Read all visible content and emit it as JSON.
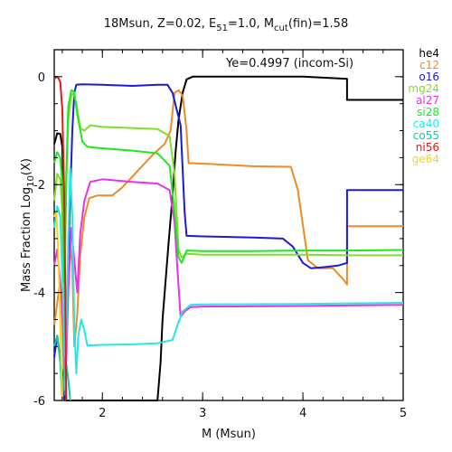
{
  "chart_data": {
    "type": "line",
    "title": {
      "prefix": "18Msun, Z=0.02, E",
      "sub1": "51",
      "middle": "=1.0, M",
      "sub2": "cut",
      "suffix": "(fin)=1.58"
    },
    "annotation": "Ye=0.4997 (incom-Si)",
    "xlabel": "M (Msun)",
    "ylabel": {
      "prefix": "Mass Fraction Log",
      "sub": "10",
      "suffix": "(X)"
    },
    "xlim": [
      1.52,
      5.0
    ],
    "ylim": [
      -6.0,
      0.5
    ],
    "xticks": [
      2,
      3,
      4,
      5
    ],
    "yticks": [
      0,
      -2,
      -4,
      -6
    ],
    "legend_position": "right-outside",
    "series": [
      {
        "name": "he4",
        "color": "#000000",
        "points": [
          [
            1.52,
            -1.25
          ],
          [
            1.55,
            -1.05
          ],
          [
            1.58,
            -1.06
          ],
          [
            1.6,
            -1.3
          ],
          [
            1.62,
            -2.8
          ],
          [
            1.63,
            -5.5
          ],
          [
            1.64,
            -6.0
          ],
          [
            2.55,
            -6.0
          ],
          [
            2.58,
            -5.3
          ],
          [
            2.6,
            -4.5
          ],
          [
            2.63,
            -3.8
          ],
          [
            2.66,
            -3.1
          ],
          [
            2.7,
            -2.2
          ],
          [
            2.73,
            -1.4
          ],
          [
            2.76,
            -0.8
          ],
          [
            2.8,
            -0.3
          ],
          [
            2.84,
            -0.05
          ],
          [
            2.9,
            0.0
          ],
          [
            3.5,
            0.0
          ],
          [
            4.0,
            0.0
          ],
          [
            4.44,
            -0.04
          ],
          [
            4.44,
            -0.43
          ],
          [
            5.0,
            -0.43
          ]
        ]
      },
      {
        "name": "c12",
        "color": "#f08a24",
        "points": [
          [
            1.52,
            -4.6
          ],
          [
            1.55,
            -4.2
          ],
          [
            1.57,
            -3.9
          ],
          [
            1.6,
            -4.5
          ],
          [
            1.62,
            -5.8
          ],
          [
            1.64,
            -4.2
          ],
          [
            1.67,
            -2.9
          ],
          [
            1.7,
            -3.5
          ],
          [
            1.72,
            -5.0
          ],
          [
            1.75,
            -4.4
          ],
          [
            1.78,
            -3.3
          ],
          [
            1.82,
            -2.6
          ],
          [
            1.87,
            -2.25
          ],
          [
            1.95,
            -2.2
          ],
          [
            2.1,
            -2.2
          ],
          [
            2.2,
            -2.05
          ],
          [
            2.35,
            -1.75
          ],
          [
            2.5,
            -1.45
          ],
          [
            2.62,
            -1.25
          ],
          [
            2.68,
            -1.0
          ],
          [
            2.72,
            -0.3
          ],
          [
            2.76,
            -0.25
          ],
          [
            2.8,
            -0.35
          ],
          [
            2.84,
            -1.0
          ],
          [
            2.86,
            -1.6
          ],
          [
            3.1,
            -1.62
          ],
          [
            3.5,
            -1.66
          ],
          [
            3.88,
            -1.67
          ],
          [
            3.95,
            -2.1
          ],
          [
            4.05,
            -3.4
          ],
          [
            4.15,
            -3.55
          ],
          [
            4.3,
            -3.55
          ],
          [
            4.4,
            -3.75
          ],
          [
            4.44,
            -3.85
          ],
          [
            4.44,
            -2.77
          ],
          [
            5.0,
            -2.77
          ]
        ]
      },
      {
        "name": "o16",
        "color": "#1a1adc",
        "points": [
          [
            1.52,
            -5.2
          ],
          [
            1.55,
            -4.8
          ],
          [
            1.6,
            -5.5
          ],
          [
            1.62,
            -6.0
          ],
          [
            1.65,
            -4.0
          ],
          [
            1.68,
            -2.2
          ],
          [
            1.7,
            -1.0
          ],
          [
            1.72,
            -0.3
          ],
          [
            1.74,
            -0.15
          ],
          [
            1.8,
            -0.14
          ],
          [
            2.0,
            -0.15
          ],
          [
            2.3,
            -0.17
          ],
          [
            2.55,
            -0.15
          ],
          [
            2.65,
            -0.15
          ],
          [
            2.7,
            -0.3
          ],
          [
            2.78,
            -0.9
          ],
          [
            2.82,
            -2.5
          ],
          [
            2.84,
            -2.95
          ],
          [
            3.0,
            -2.96
          ],
          [
            3.5,
            -2.98
          ],
          [
            3.8,
            -3.0
          ],
          [
            3.9,
            -3.15
          ],
          [
            4.0,
            -3.45
          ],
          [
            4.08,
            -3.55
          ],
          [
            4.2,
            -3.53
          ],
          [
            4.35,
            -3.5
          ],
          [
            4.44,
            -3.45
          ],
          [
            4.44,
            -2.1
          ],
          [
            5.0,
            -2.1
          ]
        ]
      },
      {
        "name": "mg24",
        "color": "#7fe02a",
        "points": [
          [
            1.52,
            -2.3
          ],
          [
            1.55,
            -1.8
          ],
          [
            1.58,
            -1.9
          ],
          [
            1.6,
            -2.5
          ],
          [
            1.62,
            -4.5
          ],
          [
            1.64,
            -2.0
          ],
          [
            1.66,
            -0.8
          ],
          [
            1.69,
            -0.35
          ],
          [
            1.71,
            -0.3
          ],
          [
            1.74,
            -0.5
          ],
          [
            1.78,
            -0.95
          ],
          [
            1.82,
            -1.0
          ],
          [
            1.88,
            -0.9
          ],
          [
            2.0,
            -0.93
          ],
          [
            2.3,
            -0.95
          ],
          [
            2.55,
            -0.97
          ],
          [
            2.67,
            -1.1
          ],
          [
            2.72,
            -1.8
          ],
          [
            2.76,
            -3.2
          ],
          [
            2.79,
            -3.35
          ],
          [
            2.84,
            -3.28
          ],
          [
            3.0,
            -3.3
          ],
          [
            3.5,
            -3.3
          ],
          [
            4.0,
            -3.3
          ],
          [
            4.44,
            -3.31
          ],
          [
            5.0,
            -3.31
          ]
        ]
      },
      {
        "name": "al27",
        "color": "#ee2ee8",
        "points": [
          [
            1.52,
            -3.5
          ],
          [
            1.55,
            -3.2
          ],
          [
            1.6,
            -4.2
          ],
          [
            1.63,
            -5.9
          ],
          [
            1.66,
            -4.0
          ],
          [
            1.69,
            -2.8
          ],
          [
            1.72,
            -3.4
          ],
          [
            1.75,
            -4.0
          ],
          [
            1.78,
            -2.9
          ],
          [
            1.82,
            -2.3
          ],
          [
            1.88,
            -1.95
          ],
          [
            2.0,
            -1.9
          ],
          [
            2.3,
            -1.95
          ],
          [
            2.55,
            -1.98
          ],
          [
            2.67,
            -2.1
          ],
          [
            2.72,
            -2.7
          ],
          [
            2.75,
            -3.6
          ],
          [
            2.78,
            -4.45
          ],
          [
            2.82,
            -4.35
          ],
          [
            2.88,
            -4.27
          ],
          [
            3.0,
            -4.26
          ],
          [
            4.0,
            -4.25
          ],
          [
            4.44,
            -4.24
          ],
          [
            5.0,
            -4.23
          ]
        ]
      },
      {
        "name": "si28",
        "color": "#1ee81e",
        "points": [
          [
            1.52,
            -1.6
          ],
          [
            1.55,
            -1.4
          ],
          [
            1.58,
            -1.5
          ],
          [
            1.6,
            -2.0
          ],
          [
            1.62,
            -3.8
          ],
          [
            1.64,
            -1.8
          ],
          [
            1.66,
            -0.55
          ],
          [
            1.69,
            -0.25
          ],
          [
            1.72,
            -0.28
          ],
          [
            1.75,
            -0.7
          ],
          [
            1.8,
            -1.2
          ],
          [
            1.85,
            -1.3
          ],
          [
            1.95,
            -1.32
          ],
          [
            2.3,
            -1.37
          ],
          [
            2.55,
            -1.42
          ],
          [
            2.67,
            -1.65
          ],
          [
            2.72,
            -2.5
          ],
          [
            2.76,
            -3.35
          ],
          [
            2.79,
            -3.45
          ],
          [
            2.84,
            -3.22
          ],
          [
            3.0,
            -3.23
          ],
          [
            3.5,
            -3.23
          ],
          [
            4.0,
            -3.22
          ],
          [
            4.44,
            -3.22
          ],
          [
            5.0,
            -3.21
          ]
        ]
      },
      {
        "name": "ca40",
        "color": "#22e8e8",
        "points": [
          [
            1.52,
            -2.8
          ],
          [
            1.55,
            -2.4
          ],
          [
            1.58,
            -2.6
          ],
          [
            1.61,
            -4.2
          ],
          [
            1.63,
            -5.8
          ],
          [
            1.66,
            -3.0
          ],
          [
            1.68,
            -1.7
          ],
          [
            1.7,
            -2.6
          ],
          [
            1.72,
            -4.6
          ],
          [
            1.74,
            -5.5
          ],
          [
            1.76,
            -4.8
          ],
          [
            1.79,
            -4.5
          ],
          [
            1.82,
            -4.7
          ],
          [
            1.85,
            -4.98
          ],
          [
            2.0,
            -4.97
          ],
          [
            2.3,
            -4.96
          ],
          [
            2.55,
            -4.94
          ],
          [
            2.7,
            -4.88
          ],
          [
            2.75,
            -4.6
          ],
          [
            2.8,
            -4.35
          ],
          [
            2.88,
            -4.23
          ],
          [
            3.0,
            -4.22
          ],
          [
            4.0,
            -4.21
          ],
          [
            4.44,
            -4.2
          ],
          [
            5.0,
            -4.19
          ]
        ]
      },
      {
        "name": "co55",
        "color": "#11c8a8",
        "points": [
          [
            1.52,
            -5.0
          ],
          [
            1.55,
            -4.8
          ],
          [
            1.58,
            -5.3
          ],
          [
            1.6,
            -6.0
          ],
          [
            1.63,
            -5.2
          ],
          [
            1.66,
            -5.6
          ],
          [
            1.68,
            -6.0
          ]
        ]
      },
      {
        "name": "ni56",
        "color": "#e81818",
        "points": [
          [
            1.52,
            -0.05
          ],
          [
            1.54,
            0.0
          ],
          [
            1.56,
            -0.02
          ],
          [
            1.58,
            -0.1
          ],
          [
            1.6,
            -0.6
          ],
          [
            1.62,
            -2.2
          ],
          [
            1.63,
            -4.0
          ],
          [
            1.64,
            -6.0
          ]
        ]
      },
      {
        "name": "ge64",
        "color": "#f0d818",
        "points": [
          [
            1.52,
            -2.6
          ],
          [
            1.54,
            -2.5
          ],
          [
            1.56,
            -3.2
          ],
          [
            1.58,
            -4.6
          ],
          [
            1.6,
            -6.0
          ]
        ]
      }
    ]
  }
}
